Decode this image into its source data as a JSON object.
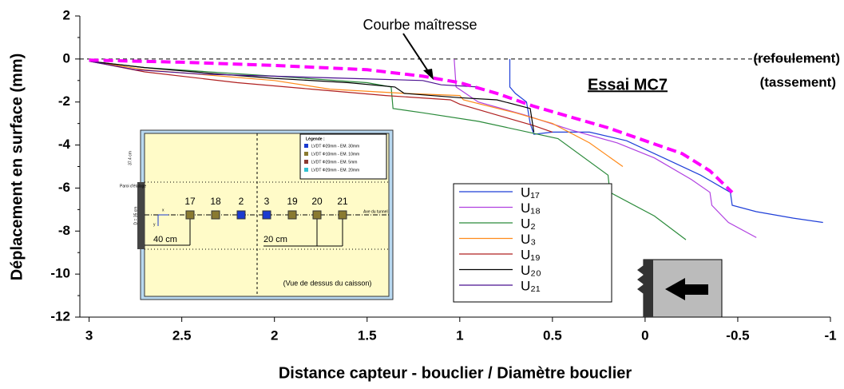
{
  "chart_data": {
    "type": "line",
    "x_label": "Distance capteur - bouclier / Diamètre bouclier",
    "y_label": "Déplacement en surface (mm)",
    "xlim": [
      3.05,
      -1
    ],
    "ylim": [
      -12,
      2
    ],
    "xticks": [
      3,
      2.5,
      2,
      1.5,
      1,
      0.5,
      0,
      -0.5,
      -1
    ],
    "yticks": [
      2,
      0,
      -2,
      -4,
      -6,
      -8,
      -10,
      -12
    ],
    "zero_line": true,
    "annotations": [
      "Courbe maîtresse",
      "(refoulement)",
      "(tassement)",
      "Essai MC7"
    ],
    "master": {
      "name": "Courbe maîtresse",
      "color": "#ff00ff",
      "x": [
        3,
        2.5,
        2,
        1.5,
        1.2,
        1,
        0.8,
        0.6,
        0.4,
        0.2,
        0,
        -0.2,
        -0.35,
        -0.47
      ],
      "values": [
        -0.05,
        -0.15,
        -0.3,
        -0.5,
        -0.8,
        -1.1,
        -1.6,
        -2.2,
        -2.7,
        -3.2,
        -3.8,
        -4.4,
        -5.2,
        -6.2
      ]
    },
    "series": [
      {
        "name": "U₁₇",
        "color": "#1f3fd8",
        "x": [
          0.73,
          0.73,
          0.7,
          0.64,
          0.62,
          0.6,
          0.5,
          0.3,
          0.1,
          -0.1,
          -0.3,
          -0.46,
          -0.47,
          -0.6,
          -0.8,
          -0.96
        ],
        "values": [
          0,
          -1.3,
          -1.6,
          -2.0,
          -3.0,
          -3.5,
          -3.4,
          -3.4,
          -3.8,
          -4.6,
          -5.4,
          -6.2,
          -6.8,
          -7.1,
          -7.4,
          -7.6
        ]
      },
      {
        "name": "U₁₈",
        "color": "#b040e0",
        "x": [
          1.03,
          1.02,
          0.9,
          0.65,
          0.4,
          0.15,
          -0.05,
          -0.25,
          -0.35,
          -0.36,
          -0.45,
          -0.6
        ],
        "values": [
          0,
          -1.3,
          -2.0,
          -2.6,
          -3.3,
          -3.9,
          -4.6,
          -5.6,
          -6.2,
          -6.8,
          -7.6,
          -8.3
        ]
      },
      {
        "name": "U₂",
        "color": "#2a8a3a",
        "x": [
          3,
          2.7,
          2,
          1.5,
          1.37,
          1.36,
          1.2,
          0.9,
          0.47,
          0.2,
          0.19,
          -0.05,
          -0.22
        ],
        "values": [
          -0.1,
          -0.4,
          -0.8,
          -1.1,
          -1.3,
          -2.3,
          -2.5,
          -2.9,
          -3.7,
          -5.4,
          -6.2,
          -7.3,
          -8.4
        ]
      },
      {
        "name": "U₃",
        "color": "#ff8a1a",
        "x": [
          3,
          2.7,
          2,
          1.7,
          1.3,
          1,
          0.98,
          0.7,
          0.5,
          0.3,
          0.12
        ],
        "values": [
          -0.1,
          -0.5,
          -1,
          -1.4,
          -1.6,
          -1.7,
          -1.9,
          -2.5,
          -3.0,
          -3.9,
          -5.0
        ]
      },
      {
        "name": "U₁₉",
        "color": "#b02020",
        "x": [
          3,
          2.7,
          2.2,
          1.8,
          1.4,
          1.05,
          1.0,
          0.8,
          0.6,
          0.5
        ],
        "values": [
          -0.1,
          -0.6,
          -1.1,
          -1.4,
          -1.7,
          -1.9,
          -2.1,
          -2.6,
          -3.1,
          -3.4
        ]
      },
      {
        "name": "U₂₀",
        "color": "#000000",
        "x": [
          3,
          2.7,
          2.3,
          2,
          1.6,
          1.35,
          1.3,
          1.0,
          0.8,
          0.62,
          0.6
        ],
        "values": [
          -0.1,
          -0.4,
          -0.7,
          -0.9,
          -1.1,
          -1.3,
          -1.6,
          -1.8,
          -1.9,
          -2.3,
          -3.4
        ]
      },
      {
        "name": "U₂₁",
        "color": "#4a1090",
        "x": [
          3,
          2.75,
          2.4,
          2,
          1.6,
          1.2,
          1.1,
          0.9
        ],
        "values": [
          -0.1,
          -0.5,
          -0.7,
          -0.8,
          -0.9,
          -1.0,
          -1.2,
          -1.3
        ]
      }
    ],
    "inset": {
      "legend_title": "Légende :",
      "legend": [
        "LVDT Φ20mm - EM. 30mm",
        "LVDT Φ10mm - EM. 10mm",
        "LVDT Φ20mm - EM. 5mm",
        "LVDT Φ20mm - EM. 20mm"
      ],
      "sensors": [
        "17",
        "18",
        "2",
        "3",
        "19",
        "20",
        "21"
      ],
      "dim1": "40 cm",
      "dim2": "20 cm",
      "caption": "(Vue de dessus du caisson)",
      "wall": "Paroi d'étalage",
      "axis": "Axe du tunnel",
      "height": "37.4 cm",
      "diam": "D = 35 cm",
      "x": "x",
      "y": "y"
    }
  }
}
